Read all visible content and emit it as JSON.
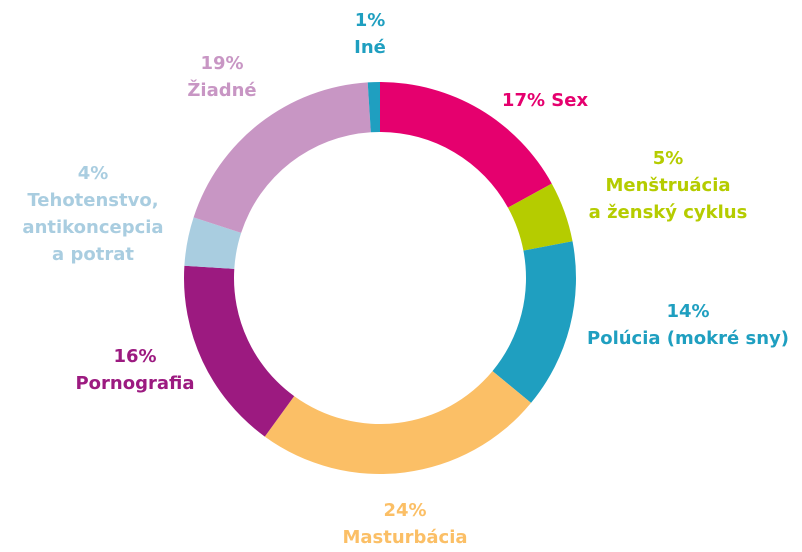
{
  "chart_data": {
    "type": "donut",
    "categories": [
      "Sex",
      "Menštruácia\na ženský cyklus",
      "Polúcia (mokré sny)",
      "Masturbácia",
      "Pornografia",
      "Tehotenstvo,\nantikoncepcia\na potrat",
      "Žiadné",
      "Iné"
    ],
    "values": [
      17,
      5,
      14,
      24,
      16,
      4,
      19,
      1
    ],
    "value_labels": [
      "17%",
      "5%",
      "14%",
      "24%",
      "16%",
      "4%",
      "19%",
      "1%"
    ],
    "colors": [
      "#e5006e",
      "#b5cc00",
      "#1f9fc0",
      "#fbbf66",
      "#9c1a80",
      "#a9cde0",
      "#c896c4",
      "#1f9fc0"
    ]
  }
}
